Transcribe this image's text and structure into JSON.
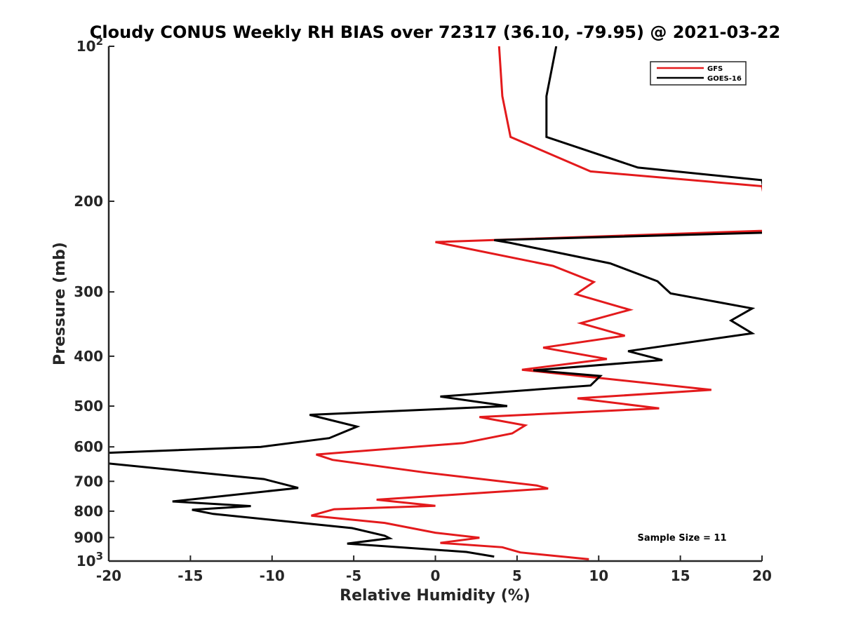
{
  "chart_data": {
    "type": "line",
    "title": "Cloudy CONUS Weekly RH BIAS over 72317 (36.10, -79.95) @ 2021-03-22",
    "xlabel": "Relative Humidity (%)",
    "ylabel": "Pressure (mb)",
    "xlim": [
      -20,
      20
    ],
    "ylim": [
      100,
      1000
    ],
    "y_scale": "log",
    "y_reversed": true,
    "x_ticks": [
      {
        "value": -20,
        "label": "-20"
      },
      {
        "value": -15,
        "label": "-15"
      },
      {
        "value": -10,
        "label": "-10"
      },
      {
        "value": -5,
        "label": "-5"
      },
      {
        "value": 0,
        "label": "0"
      },
      {
        "value": 5,
        "label": "5"
      },
      {
        "value": 10,
        "label": "10"
      },
      {
        "value": 15,
        "label": "15"
      },
      {
        "value": 20,
        "label": "20"
      }
    ],
    "y_ticks": [
      {
        "value": 100,
        "label": "10",
        "sup": "2"
      },
      {
        "value": 200,
        "label": "200",
        "sup": ""
      },
      {
        "value": 300,
        "label": "300",
        "sup": ""
      },
      {
        "value": 400,
        "label": "400",
        "sup": ""
      },
      {
        "value": 500,
        "label": "500",
        "sup": ""
      },
      {
        "value": 600,
        "label": "600",
        "sup": ""
      },
      {
        "value": 700,
        "label": "700",
        "sup": ""
      },
      {
        "value": 800,
        "label": "800",
        "sup": ""
      },
      {
        "value": 900,
        "label": "900",
        "sup": ""
      },
      {
        "value": 1000,
        "label": "10",
        "sup": "3"
      }
    ],
    "grid": false,
    "legend_position": "top-right",
    "series": [
      {
        "name": "GFS",
        "color": "#e31a1c",
        "points": [
          [
            3.9,
            100
          ],
          [
            4.1,
            125
          ],
          [
            4.6,
            150
          ],
          [
            9.5,
            175
          ],
          [
            20,
            187
          ],
          [
            20.5,
            228
          ],
          [
            0,
            240
          ],
          [
            7.2,
            267
          ],
          [
            9.7,
            287
          ],
          [
            8.6,
            303
          ],
          [
            11.9,
            325
          ],
          [
            8.9,
            345
          ],
          [
            11.6,
            365
          ],
          [
            6.6,
            385
          ],
          [
            10.5,
            405
          ],
          [
            5.3,
            425
          ],
          [
            16.9,
            465
          ],
          [
            8.7,
            483
          ],
          [
            13.7,
            505
          ],
          [
            2.7,
            525
          ],
          [
            5.5,
            545
          ],
          [
            4.7,
            565
          ],
          [
            1.7,
            590
          ],
          [
            -7.3,
            621
          ],
          [
            -6.3,
            636
          ],
          [
            -0.6,
            673
          ],
          [
            6.2,
            713
          ],
          [
            6.9,
            723
          ],
          [
            -3.6,
            760
          ],
          [
            0,
            781
          ],
          [
            -6.2,
            793
          ],
          [
            -7.6,
            816
          ],
          [
            -3.1,
            843
          ],
          [
            0,
            881
          ],
          [
            2.7,
            901
          ],
          [
            0.3,
            922
          ],
          [
            4.1,
            940
          ],
          [
            5.2,
            962
          ],
          [
            9.4,
            992
          ]
        ]
      },
      {
        "name": "GOES-16",
        "color": "#000000",
        "points": [
          [
            7.4,
            100
          ],
          [
            6.8,
            125
          ],
          [
            6.8,
            150
          ],
          [
            12.4,
            172
          ],
          [
            20,
            182
          ],
          [
            20.5,
            230
          ],
          [
            3.6,
            238
          ],
          [
            4.6,
            241
          ],
          [
            10.7,
            264
          ],
          [
            13.6,
            286
          ],
          [
            14.4,
            302
          ],
          [
            19.4,
            323
          ],
          [
            18.1,
            341
          ],
          [
            19.4,
            361
          ],
          [
            11.8,
            391
          ],
          [
            13.9,
            407
          ],
          [
            6.0,
            426
          ],
          [
            10.1,
            437
          ],
          [
            9.5,
            456
          ],
          [
            0.3,
            479
          ],
          [
            4.4,
            500
          ],
          [
            -7.7,
            520
          ],
          [
            -4.8,
            548
          ],
          [
            -6.5,
            577
          ],
          [
            -10.7,
            600
          ],
          [
            -20,
            616
          ],
          [
            -20.5,
            644
          ],
          [
            -10.5,
            693
          ],
          [
            -8.4,
            721
          ],
          [
            -16.1,
            766
          ],
          [
            -11.3,
            782
          ],
          [
            -14.9,
            795
          ],
          [
            -13.6,
            810
          ],
          [
            -5.1,
            863
          ],
          [
            -3.1,
            893
          ],
          [
            -2.8,
            903
          ],
          [
            -5.4,
            925
          ],
          [
            1.9,
            960
          ],
          [
            3.6,
            980
          ]
        ]
      }
    ],
    "annotations": [
      {
        "text": "Sample Size = 11"
      }
    ]
  }
}
